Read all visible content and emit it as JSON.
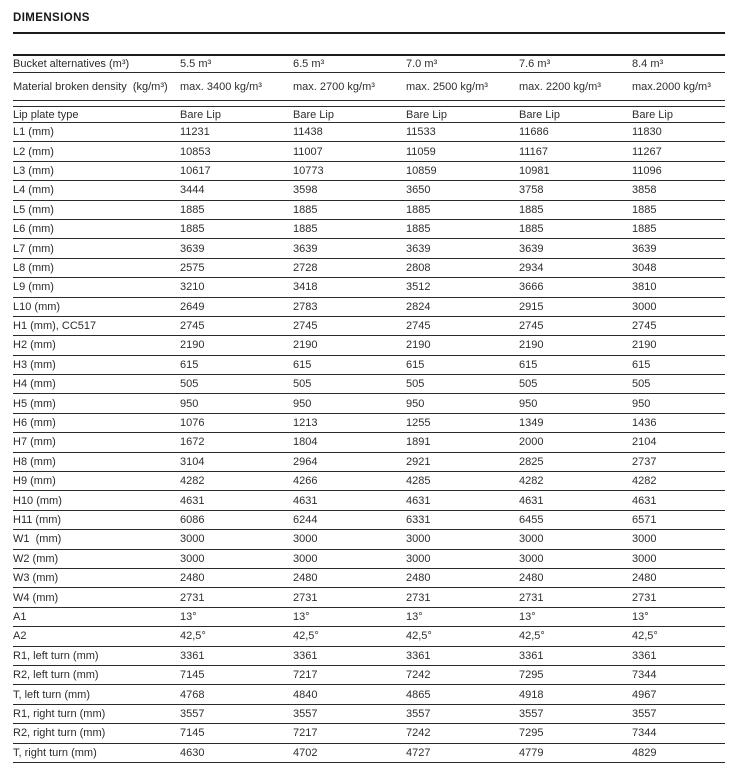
{
  "title": "DIMENSIONS",
  "colors": {
    "text": "#2e2e2e",
    "rule": "#1c1c1c",
    "row_border": "#2b2b2b",
    "background": "#ffffff"
  },
  "table": {
    "header_rows": [
      {
        "label": "Bucket alternatives (m³)",
        "values": [
          "5.5 m³",
          "6.5 m³",
          "7.0 m³",
          "7.6 m³",
          "8.4 m³"
        ]
      },
      {
        "label": "Material broken density  (kg/m³)",
        "values": [
          "max. 3400 kg/m³",
          "max. 2700 kg/m³",
          "max. 2500 kg/m³",
          "max. 2200 kg/m³",
          "max.2000 kg/m³"
        ]
      },
      {
        "label": "Lip plate type",
        "values": [
          "Bare Lip",
          "Bare Lip",
          "Bare Lip",
          "Bare Lip",
          "Bare Lip"
        ]
      }
    ],
    "rows": [
      {
        "label": "L1 (mm)",
        "values": [
          "11231",
          "11438",
          "11533",
          "11686",
          "11830"
        ]
      },
      {
        "label": "L2 (mm)",
        "values": [
          "10853",
          "11007",
          "11059",
          "11167",
          "11267"
        ]
      },
      {
        "label": "L3 (mm)",
        "values": [
          "10617",
          "10773",
          "10859",
          "10981",
          "11096"
        ]
      },
      {
        "label": "L4 (mm)",
        "values": [
          "3444",
          "3598",
          "3650",
          "3758",
          "3858"
        ]
      },
      {
        "label": "L5 (mm)",
        "values": [
          "1885",
          "1885",
          "1885",
          "1885",
          "1885"
        ]
      },
      {
        "label": "L6 (mm)",
        "values": [
          "1885",
          "1885",
          "1885",
          "1885",
          "1885"
        ]
      },
      {
        "label": "L7 (mm)",
        "values": [
          "3639",
          "3639",
          "3639",
          "3639",
          "3639"
        ]
      },
      {
        "label": "L8 (mm)",
        "values": [
          "2575",
          "2728",
          "2808",
          "2934",
          "3048"
        ]
      },
      {
        "label": "L9 (mm)",
        "values": [
          "3210",
          "3418",
          "3512",
          "3666",
          "3810"
        ]
      },
      {
        "label": "L10 (mm)",
        "values": [
          "2649",
          "2783",
          "2824",
          "2915",
          "3000"
        ]
      },
      {
        "label": "H1 (mm), CC517",
        "values": [
          "2745",
          "2745",
          "2745",
          "2745",
          "2745"
        ]
      },
      {
        "label": "H2 (mm)",
        "values": [
          "2190",
          "2190",
          "2190",
          "2190",
          "2190"
        ]
      },
      {
        "label": "H3 (mm)",
        "values": [
          "615",
          "615",
          "615",
          "615",
          "615"
        ]
      },
      {
        "label": "H4 (mm)",
        "values": [
          "505",
          "505",
          "505",
          "505",
          "505"
        ]
      },
      {
        "label": "H5 (mm)",
        "values": [
          "950",
          "950",
          "950",
          "950",
          "950"
        ]
      },
      {
        "label": "H6 (mm)",
        "values": [
          "1076",
          "1213",
          "1255",
          "1349",
          "1436"
        ]
      },
      {
        "label": "H7 (mm)",
        "values": [
          "1672",
          "1804",
          "1891",
          "2000",
          "2104"
        ]
      },
      {
        "label": "H8 (mm)",
        "values": [
          "3104",
          "2964",
          "2921",
          "2825",
          "2737"
        ]
      },
      {
        "label": "H9 (mm)",
        "values": [
          "4282",
          "4266",
          "4285",
          "4282",
          "4282"
        ]
      },
      {
        "label": "H10 (mm)",
        "values": [
          "4631",
          "4631",
          "4631",
          "4631",
          "4631"
        ]
      },
      {
        "label": "H11 (mm)",
        "values": [
          "6086",
          "6244",
          "6331",
          "6455",
          "6571"
        ]
      },
      {
        "label": "W1  (mm)",
        "values": [
          "3000",
          "3000",
          "3000",
          "3000",
          "3000"
        ]
      },
      {
        "label": "W2 (mm)",
        "values": [
          "3000",
          "3000",
          "3000",
          "3000",
          "3000"
        ]
      },
      {
        "label": "W3 (mm)",
        "values": [
          "2480",
          "2480",
          "2480",
          "2480",
          "2480"
        ]
      },
      {
        "label": "W4 (mm)",
        "values": [
          "2731",
          "2731",
          "2731",
          "2731",
          "2731"
        ]
      },
      {
        "label": "A1",
        "values": [
          "13°",
          "13°",
          "13°",
          "13°",
          "13°"
        ]
      },
      {
        "label": "A2",
        "values": [
          "42,5°",
          "42,5°",
          "42,5°",
          "42,5°",
          "42,5°"
        ]
      },
      {
        "label": "R1, left turn (mm)",
        "values": [
          "3361",
          "3361",
          "3361",
          "3361",
          "3361"
        ]
      },
      {
        "label": "R2, left turn (mm)",
        "values": [
          "7145",
          "7217",
          "7242",
          "7295",
          "7344"
        ]
      },
      {
        "label": "T, left turn (mm)",
        "values": [
          "4768",
          "4840",
          "4865",
          "4918",
          "4967"
        ]
      },
      {
        "label": "R1, right turn (mm)",
        "values": [
          "3557",
          "3557",
          "3557",
          "3557",
          "3557"
        ]
      },
      {
        "label": "R2, right turn (mm)",
        "values": [
          "7145",
          "7217",
          "7242",
          "7295",
          "7344"
        ]
      },
      {
        "label": "T, right turn (mm)",
        "values": [
          "4630",
          "4702",
          "4727",
          "4779",
          "4829"
        ]
      }
    ]
  }
}
